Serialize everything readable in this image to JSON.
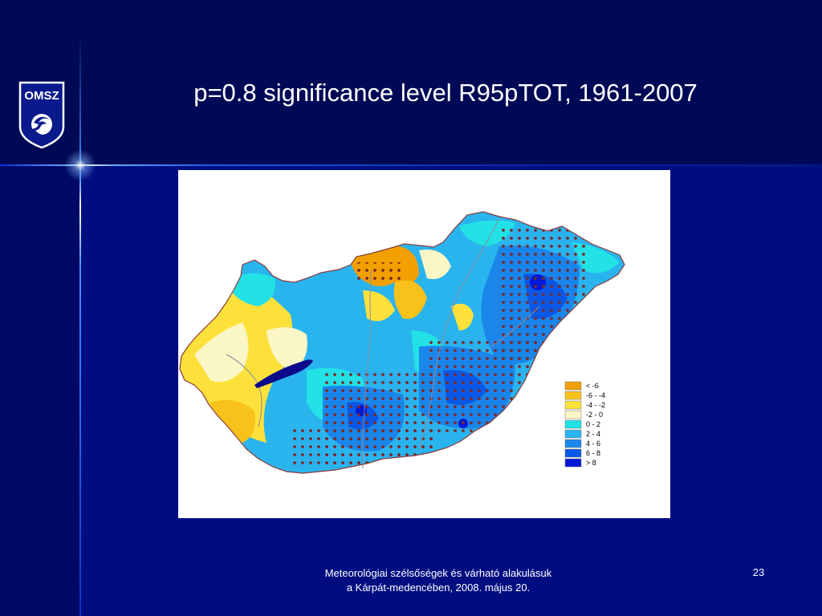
{
  "slide": {
    "title": "p=0.8 significance level R95pTOT, 1961-2007",
    "logo_text": "OMSZ",
    "footer_line1": "Meteorológiai szélsőségek és várható alakulásuk",
    "footer_line2": "a Kárpát-medencében, 2008. május 20.",
    "page_number": "23"
  },
  "map": {
    "legend": [
      {
        "label": "< -6",
        "color": "#f2a000"
      },
      {
        "label": "-6 - -4",
        "color": "#f8c21a"
      },
      {
        "label": "-4 - -2",
        "color": "#fde13a"
      },
      {
        "label": "-2 - 0",
        "color": "#fbf6c6"
      },
      {
        "label": "0 - 2",
        "color": "#22e2e6"
      },
      {
        "label": "2 - 4",
        "color": "#2ab4ee"
      },
      {
        "label": "4 - 6",
        "color": "#1a86ea"
      },
      {
        "label": "6 - 8",
        "color": "#0a58e6"
      },
      {
        "label": "> 8",
        "color": "#0018d8"
      }
    ]
  }
}
